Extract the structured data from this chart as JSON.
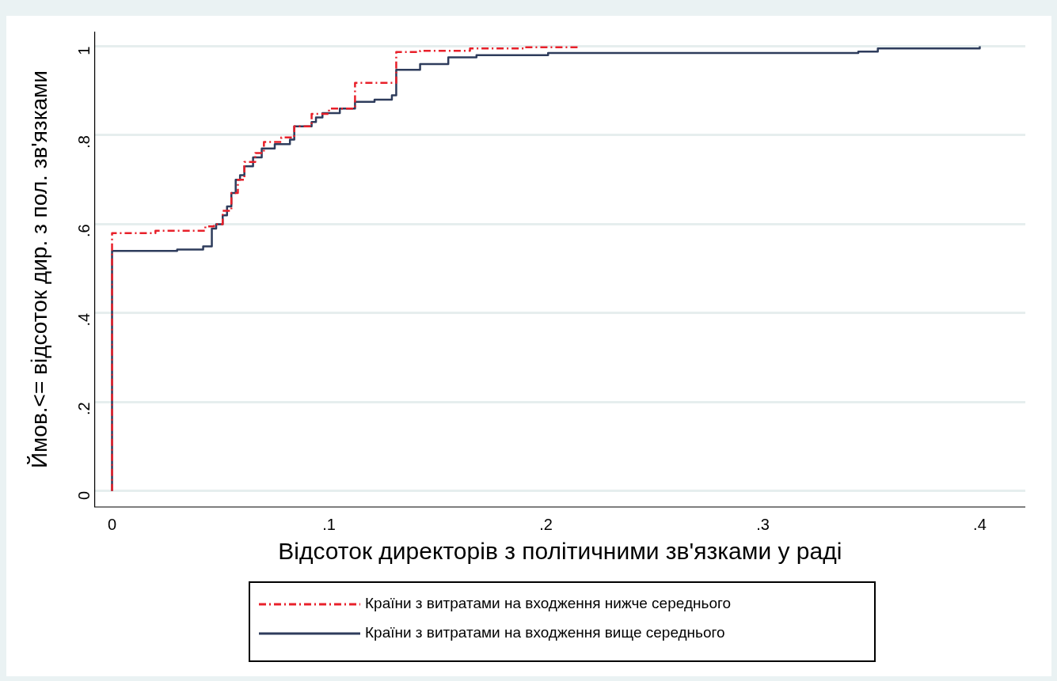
{
  "chart_data": {
    "type": "step",
    "xlabel": "Відсоток директорів з політичними зв'язками у раді",
    "ylabel": "Ймов.<= відсоток дир. з пол. зв'язками",
    "xlim": [
      -0.008,
      0.421
    ],
    "ylim": [
      -0.036,
      1.033
    ],
    "xticks": [
      {
        "value": 0,
        "label": "0"
      },
      {
        "value": 0.1,
        "label": ".1"
      },
      {
        "value": 0.2,
        "label": ".2"
      },
      {
        "value": 0.3,
        "label": ".3"
      },
      {
        "value": 0.4,
        "label": ".4"
      }
    ],
    "yticks": [
      {
        "value": 0,
        "label": "0"
      },
      {
        "value": 0.2,
        "label": ".2"
      },
      {
        "value": 0.4,
        "label": ".4"
      },
      {
        "value": 0.6,
        "label": ".6"
      },
      {
        "value": 0.8,
        "label": ".8"
      },
      {
        "value": 1,
        "label": "1"
      }
    ],
    "grid": "y",
    "legend": "bottom",
    "marker": "none",
    "series": [
      {
        "name": "Країни з витратами на входження нижче середнього",
        "color": "#e8202a",
        "line_style": "dashdot",
        "x": [
          0,
          0,
          0.02,
          0.043,
          0.047,
          0.051,
          0.055,
          0.058,
          0.061,
          0.066,
          0.07,
          0.078,
          0.084,
          0.092,
          0.1,
          0.112,
          0.131,
          0.142,
          0.165,
          0.19,
          0.215
        ],
        "values": [
          0,
          0.58,
          0.585,
          0.595,
          0.6,
          0.63,
          0.67,
          0.7,
          0.74,
          0.76,
          0.785,
          0.795,
          0.82,
          0.848,
          0.86,
          0.918,
          0.987,
          0.99,
          0.995,
          0.998,
          1
        ]
      },
      {
        "name": "Країни з витратами на входження вище середнього",
        "color": "#2e3c5c",
        "line_style": "solid",
        "x": [
          0,
          0,
          0.03,
          0.042,
          0.046,
          0.048,
          0.051,
          0.053,
          0.055,
          0.057,
          0.059,
          0.061,
          0.065,
          0.069,
          0.075,
          0.082,
          0.084,
          0.092,
          0.094,
          0.097,
          0.105,
          0.112,
          0.121,
          0.129,
          0.131,
          0.142,
          0.155,
          0.168,
          0.201,
          0.344,
          0.353,
          0.4
        ],
        "values": [
          0,
          0.54,
          0.543,
          0.55,
          0.59,
          0.6,
          0.62,
          0.64,
          0.67,
          0.7,
          0.71,
          0.73,
          0.75,
          0.77,
          0.78,
          0.79,
          0.82,
          0.83,
          0.84,
          0.85,
          0.86,
          0.875,
          0.88,
          0.89,
          0.947,
          0.96,
          0.975,
          0.98,
          0.985,
          0.988,
          0.995,
          1
        ]
      }
    ]
  }
}
